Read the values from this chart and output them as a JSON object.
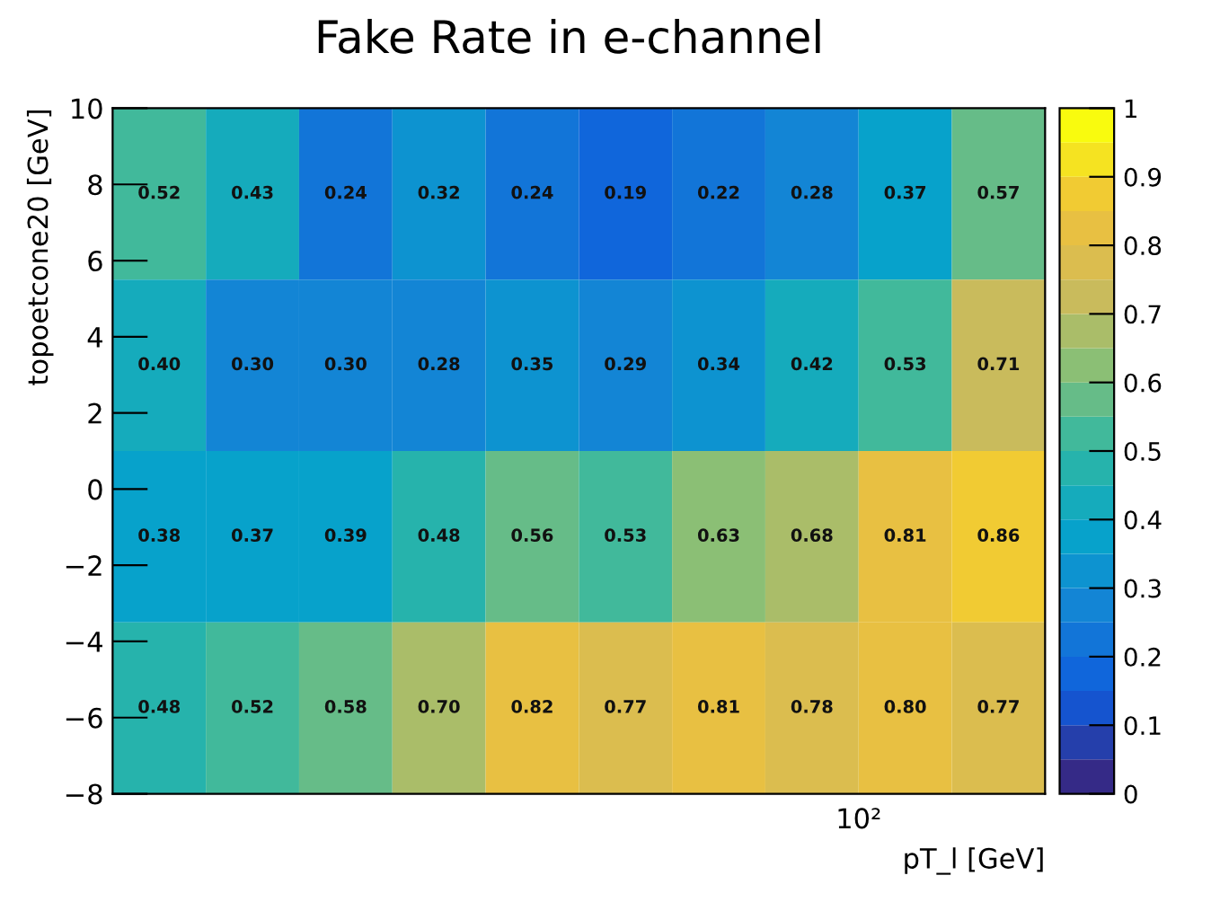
{
  "chart_data": {
    "type": "heatmap",
    "title": "Fake Rate in e-channel",
    "xlabel": "pT_l [GeV]",
    "ylabel": "topoetcone20 [GeV]",
    "categories": [
      null,
      null,
      null,
      null,
      null,
      null,
      null,
      null,
      null,
      null
    ],
    "cells": [
      [
        0.52,
        0.43,
        0.24,
        0.32,
        0.24,
        0.19,
        0.22,
        0.28,
        0.37,
        0.57
      ],
      [
        0.4,
        0.3,
        0.3,
        0.28,
        0.35,
        0.29,
        0.34,
        0.42,
        0.53,
        0.71
      ],
      [
        0.38,
        0.37,
        0.39,
        0.48,
        0.56,
        0.53,
        0.63,
        0.68,
        0.81,
        0.86
      ],
      [
        0.48,
        0.52,
        0.58,
        0.7,
        0.82,
        0.77,
        0.81,
        0.78,
        0.8,
        0.77
      ]
    ],
    "cell_labels": [
      [
        "0.52",
        "0.43",
        "0.24",
        "0.32",
        "0.24",
        "0.19",
        "0.22",
        "0.28",
        "0.37",
        "0.57"
      ],
      [
        "0.40",
        "0.30",
        "0.30",
        "0.28",
        "0.35",
        "0.29",
        "0.34",
        "0.42",
        "0.53",
        "0.71"
      ],
      [
        "0.38",
        "0.37",
        "0.39",
        "0.48",
        "0.56",
        "0.53",
        "0.63",
        "0.68",
        "0.81",
        "0.86"
      ],
      [
        "0.48",
        "0.52",
        "0.58",
        "0.70",
        "0.82",
        "0.77",
        "0.81",
        "0.78",
        "0.80",
        "0.77"
      ]
    ],
    "annotations": [
      "10²"
    ],
    "ylim": [
      -8,
      10
    ],
    "yticks": [
      {
        "value": -8,
        "label": "−8"
      },
      {
        "value": -6,
        "label": "−6"
      },
      {
        "value": -4,
        "label": "−4"
      },
      {
        "value": -2,
        "label": "−2"
      },
      0,
      2,
      4,
      6,
      8,
      10
    ],
    "clim": [
      0,
      1
    ],
    "cticks": [
      0,
      0.1,
      0.2,
      0.3,
      0.4,
      0.5,
      0.6,
      0.7,
      0.8,
      0.9,
      1
    ]
  }
}
